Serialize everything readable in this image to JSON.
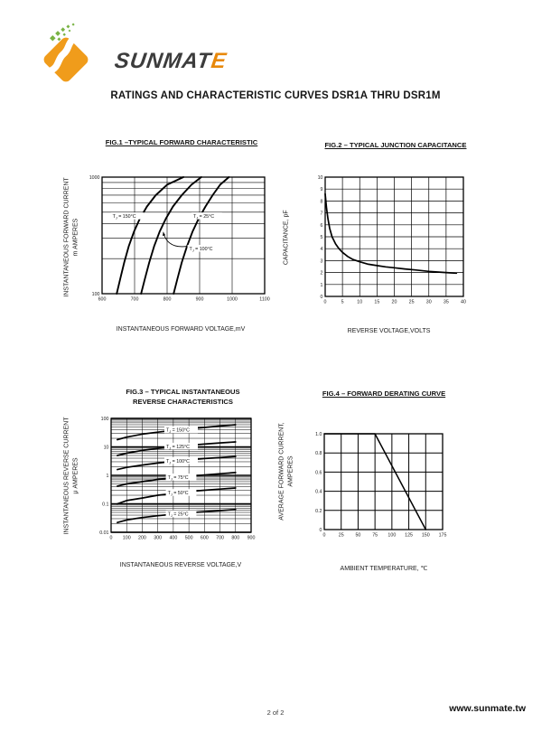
{
  "page": {
    "title": "RATINGS AND CHARACTERISTIC CURVES DSR1A THRU DSR1M",
    "footer_page": "2 of 2",
    "footer_url": "www.sunmate.tw"
  },
  "logo": {
    "brand_main": "SUNMAT",
    "brand_accent": "E",
    "orange": "#F09C1B",
    "orange_dark": "#E8880A",
    "green": "#79B344",
    "dark": "#3C3C3C"
  },
  "chart_data": [
    {
      "id": "fig1",
      "type": "line",
      "title": "FIG.1 –TYPICAL FORWARD CHARACTERISTIC",
      "xlabel": "INSTANTANEOUS FORWARD VOLTAGE,mV",
      "ylabel": "INSTANTANEOUS FORWARD CURRENT",
      "ylabel2": "m AMPERES",
      "xscale": "linear",
      "yscale": "log",
      "xlim": [
        600,
        1100
      ],
      "ylim": [
        100,
        1000
      ],
      "xticks": [
        600,
        700,
        800,
        900,
        1000,
        1100
      ],
      "yticks": [
        {
          "v": 100,
          "l": "100"
        },
        {
          "v": 1000,
          "l": "1000"
        }
      ],
      "series": [
        {
          "name": "TJ = 150°C",
          "points": [
            [
              645,
              100
            ],
            [
              656,
              135
            ],
            [
              668,
              185
            ],
            [
              682,
              255
            ],
            [
              698,
              340
            ],
            [
              716,
              440
            ],
            [
              738,
              560
            ],
            [
              765,
              700
            ],
            [
              800,
              860
            ],
            [
              850,
              1000
            ]
          ]
        },
        {
          "name": "TJ = 100°C",
          "points": [
            [
              720,
              100
            ],
            [
              732,
              135
            ],
            [
              745,
              185
            ],
            [
              760,
              255
            ],
            [
              777,
              340
            ],
            [
              796,
              440
            ],
            [
              818,
              560
            ],
            [
              845,
              700
            ],
            [
              875,
              860
            ],
            [
              905,
              1000
            ]
          ]
        },
        {
          "name": "TJ = 25°C",
          "points": [
            [
              820,
              100
            ],
            [
              832,
              135
            ],
            [
              845,
              185
            ],
            [
              861,
              255
            ],
            [
              878,
              340
            ],
            [
              897,
              440
            ],
            [
              918,
              560
            ],
            [
              940,
              700
            ],
            [
              963,
              860
            ],
            [
              990,
              1000
            ]
          ]
        }
      ],
      "labels": [
        {
          "text": "TJ = 150°C",
          "x": 678,
          "y": 465
        },
        {
          "text": "TJ = 25°C",
          "x": 922,
          "y": 465
        },
        {
          "text": "TJ = 100°C",
          "x": 914,
          "y": 245
        }
      ],
      "arrow": {
        "from": [
          862,
          255
        ],
        "ctrl": [
          800,
          242
        ],
        "to": [
          788,
          338
        ]
      }
    },
    {
      "id": "fig2",
      "type": "line",
      "title": "FIG.2 – TYPICAL JUNCTION CAPACITANCE",
      "xlabel": "REVERSE VOLTAGE,VOLTS",
      "ylabel": "CAPACITANCE, pF",
      "ylabel2": "",
      "xscale": "linear",
      "yscale": "linear",
      "xlim": [
        0,
        40
      ],
      "ylim": [
        0,
        10
      ],
      "xticks": [
        0,
        5,
        10,
        15,
        20,
        25,
        30,
        35,
        40
      ],
      "yticks": [
        0,
        1,
        2,
        3,
        4,
        5,
        6,
        7,
        8,
        9,
        10
      ],
      "series": [
        {
          "points": [
            [
              0,
              8.6
            ],
            [
              0.4,
              7.4
            ],
            [
              0.8,
              6.5
            ],
            [
              1.3,
              5.7
            ],
            [
              2,
              5.0
            ],
            [
              3,
              4.4
            ],
            [
              4,
              4.0
            ],
            [
              5,
              3.7
            ],
            [
              6.5,
              3.35
            ],
            [
              8,
              3.1
            ],
            [
              10,
              2.9
            ],
            [
              12.5,
              2.7
            ],
            [
              15,
              2.58
            ],
            [
              17.5,
              2.48
            ],
            [
              20,
              2.4
            ],
            [
              23,
              2.3
            ],
            [
              26,
              2.22
            ],
            [
              30,
              2.1
            ],
            [
              33,
              2.04
            ],
            [
              36,
              1.98
            ],
            [
              38,
              1.95
            ]
          ]
        }
      ]
    },
    {
      "id": "fig3",
      "type": "line",
      "title": "FIG.3 – TYPICAL INSTANTANEOUS",
      "title2": "REVERSE CHARACTERISTICS",
      "xlabel": "INSTANTANEOUS REVERSE VOLTAGE,V",
      "ylabel": "INSTANTANEOUS REVERSE CURRENT",
      "ylabel2": "μ AMPERES",
      "xscale": "linear",
      "yscale": "log",
      "xlim": [
        0,
        900
      ],
      "ylim": [
        0.01,
        100
      ],
      "xticks": [
        0,
        100,
        200,
        300,
        400,
        500,
        600,
        700,
        800,
        900
      ],
      "yticks": [
        {
          "v": 100,
          "l": "100"
        },
        {
          "v": 10,
          "l": "10"
        },
        {
          "v": 1,
          "l": "1"
        },
        {
          "v": 0.1,
          "l": "0.1"
        },
        {
          "v": 0.01,
          "l": "0.01"
        }
      ],
      "series": [
        {
          "name": "TJ = 150°C",
          "points": [
            [
              40,
              18
            ],
            [
              100,
              22
            ],
            [
              200,
              28
            ],
            [
              300,
              33
            ],
            [
              400,
              38
            ],
            [
              500,
              43
            ],
            [
              600,
              48
            ],
            [
              700,
              54
            ],
            [
              800,
              60
            ]
          ]
        },
        {
          "name": "TJ = 125°C",
          "points": [
            [
              40,
              5
            ],
            [
              100,
              6
            ],
            [
              200,
              7.5
            ],
            [
              300,
              8.8
            ],
            [
              400,
              10
            ],
            [
              500,
              11.3
            ],
            [
              600,
              12.5
            ],
            [
              700,
              13.8
            ],
            [
              800,
              15
            ]
          ]
        },
        {
          "name": "TJ = 100°C",
          "points": [
            [
              40,
              1.6
            ],
            [
              100,
              1.9
            ],
            [
              200,
              2.3
            ],
            [
              300,
              2.7
            ],
            [
              400,
              3.1
            ],
            [
              500,
              3.5
            ],
            [
              600,
              3.9
            ],
            [
              700,
              4.2
            ],
            [
              800,
              4.6
            ]
          ]
        },
        {
          "name": "TJ = 75°C",
          "points": [
            [
              40,
              0.42
            ],
            [
              100,
              0.5
            ],
            [
              200,
              0.6
            ],
            [
              300,
              0.72
            ],
            [
              400,
              0.83
            ],
            [
              500,
              0.93
            ],
            [
              600,
              1.03
            ],
            [
              700,
              1.14
            ],
            [
              800,
              1.25
            ]
          ]
        },
        {
          "name": "TJ = 50°C",
          "points": [
            [
              40,
              0.1
            ],
            [
              100,
              0.13
            ],
            [
              200,
              0.16
            ],
            [
              300,
              0.2
            ],
            [
              400,
              0.23
            ],
            [
              500,
              0.27
            ],
            [
              600,
              0.3
            ],
            [
              700,
              0.33
            ],
            [
              800,
              0.36
            ]
          ]
        },
        {
          "name": "TJ = 25°C",
          "points": [
            [
              40,
              0.022
            ],
            [
              100,
              0.027
            ],
            [
              200,
              0.033
            ],
            [
              300,
              0.038
            ],
            [
              400,
              0.043
            ],
            [
              500,
              0.048
            ],
            [
              600,
              0.053
            ],
            [
              700,
              0.058
            ],
            [
              800,
              0.063
            ]
          ]
        }
      ],
      "labels": [
        {
          "text": "TJ = 150°C",
          "x": 450,
          "y": 40
        },
        {
          "text": "TJ = 125°C",
          "x": 450,
          "y": 10.6
        },
        {
          "text": "TJ = 100°C",
          "x": 450,
          "y": 3.3
        },
        {
          "text": "TJ = 75°C",
          "x": 450,
          "y": 0.88
        },
        {
          "text": "TJ = 50°C",
          "x": 450,
          "y": 0.25
        },
        {
          "text": "TJ = 25°C",
          "x": 450,
          "y": 0.045
        }
      ]
    },
    {
      "id": "fig4",
      "type": "line",
      "title": "FIG.4 – FORWARD DERATING CURVE",
      "xlabel": "AMBIENT TEMPERATURE, ℃",
      "ylabel": "AVERAGE FORWARD CURRENT,",
      "ylabel2": "AMPERES",
      "xscale": "linear",
      "yscale": "linear",
      "xlim": [
        0,
        175
      ],
      "ylim": [
        0,
        1.0
      ],
      "xticks": [
        0,
        25,
        50,
        75,
        100,
        125,
        150,
        175
      ],
      "yticks": [
        {
          "v": 0,
          "l": "0"
        },
        {
          "v": 0.2,
          "l": "0.2"
        },
        {
          "v": 0.4,
          "l": "0.4"
        },
        {
          "v": 0.6,
          "l": "0.6"
        },
        {
          "v": 0.8,
          "l": "0.8"
        },
        {
          "v": 1.0,
          "l": "1.0"
        }
      ],
      "series": [
        {
          "points": [
            [
              0,
              1.0
            ],
            [
              75,
              1.0
            ],
            [
              150,
              0
            ]
          ]
        }
      ]
    }
  ]
}
